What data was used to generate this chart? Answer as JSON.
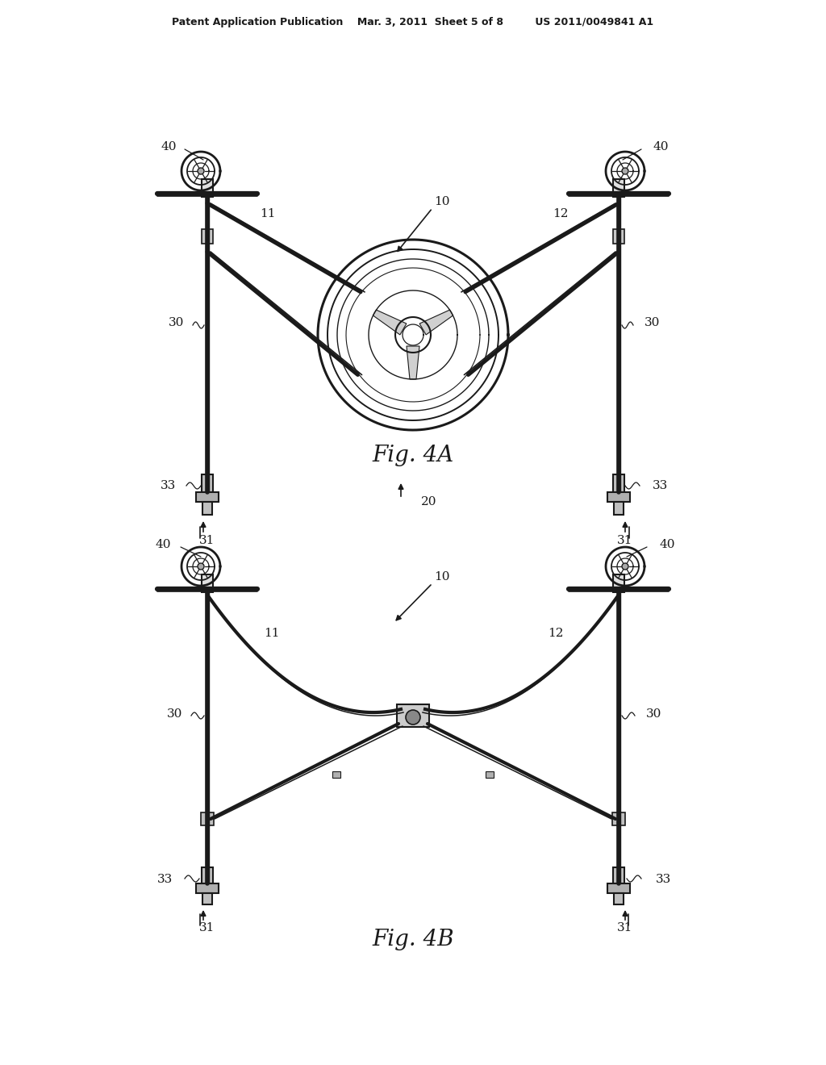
{
  "bg_color": "#ffffff",
  "line_color": "#1a1a1a",
  "header": "Patent Application Publication    Mar. 3, 2011  Sheet 5 of 8         US 2011/0049841 A1",
  "fig4a_label": "Fig. 4A",
  "fig4b_label": "Fig. 4B"
}
